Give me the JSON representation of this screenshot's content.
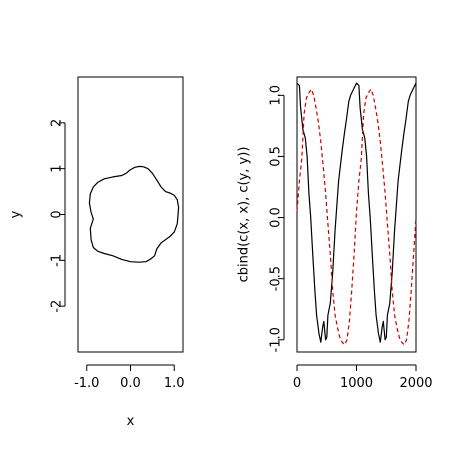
{
  "chart_data": [
    {
      "type": "line",
      "title": "",
      "xlabel": "x",
      "ylabel": "y",
      "xlim": [
        -1.2,
        1.2
      ],
      "ylim": [
        -3.0,
        3.0
      ],
      "x_ticks": [
        -1.0,
        0.0,
        1.0
      ],
      "x_tick_labels": [
        "-1.0",
        "0.0",
        "1.0"
      ],
      "y_ticks": [
        -2,
        -1,
        0,
        1,
        2
      ],
      "y_tick_labels": [
        "-2",
        "-1",
        "0",
        "1",
        "2"
      ],
      "grid": false,
      "series": [
        {
          "color": "#000000",
          "dash": "solid",
          "x": [
            1.1,
            1.07,
            1.0,
            0.9,
            0.8,
            0.7,
            0.6,
            0.5,
            0.4,
            0.3,
            0.2,
            0.1,
            0.0,
            -0.1,
            -0.2,
            -0.4,
            -0.6,
            -0.75,
            -0.85,
            -0.92,
            -0.94,
            -0.9,
            -0.85,
            -0.92,
            -0.9,
            -0.85,
            -0.75,
            -0.6,
            -0.4,
            -0.2,
            0.0,
            0.2,
            0.35,
            0.45,
            0.55,
            0.6,
            0.7,
            0.8,
            0.9,
            1.0,
            1.07,
            1.1
          ],
          "y": [
            0.15,
            0.32,
            0.42,
            0.47,
            0.5,
            0.6,
            0.75,
            0.9,
            1.0,
            1.04,
            1.05,
            1.03,
            0.98,
            0.9,
            0.85,
            0.82,
            0.78,
            0.7,
            0.6,
            0.45,
            0.25,
            0.05,
            -0.1,
            -0.3,
            -0.55,
            -0.72,
            -0.8,
            -0.85,
            -0.9,
            -0.98,
            -1.03,
            -1.04,
            -1.03,
            -0.98,
            -0.9,
            -0.75,
            -0.62,
            -0.55,
            -0.48,
            -0.38,
            -0.2,
            0.15
          ]
        }
      ]
    },
    {
      "type": "line",
      "title": "",
      "xlabel": "",
      "ylabel": "cbind(c(x, x), c(y, y))",
      "xlim": [
        0,
        2000
      ],
      "ylim": [
        -1.1,
        1.15
      ],
      "x_ticks": [
        0,
        1000,
        2000
      ],
      "x_tick_labels": [
        "0",
        "1000",
        "2000"
      ],
      "y_ticks": [
        -1.0,
        -0.5,
        0.0,
        0.5,
        1.0
      ],
      "y_tick_labels": [
        "-1.0",
        "-0.5",
        "0.0",
        "0.5",
        "1.0"
      ],
      "grid": false,
      "series": [
        {
          "color": "#000000",
          "dash": "solid",
          "x": [
            0,
            40,
            60,
            100,
            140,
            170,
            200,
            230,
            270,
            300,
            330,
            370,
            400,
            430,
            450,
            480,
            500,
            520,
            560,
            600,
            640,
            700,
            760,
            800,
            830,
            870,
            900,
            950,
            1000,
            1040,
            1060,
            1100,
            1140,
            1170,
            1200,
            1230,
            1270,
            1300,
            1330,
            1370,
            1400,
            1430,
            1450,
            1480,
            1500,
            1520,
            1560,
            1600,
            1640,
            1700,
            1760,
            1800,
            1830,
            1870,
            1900,
            1950,
            2000
          ],
          "y": [
            1.1,
            1.08,
            0.9,
            0.72,
            0.65,
            0.5,
            0.2,
            0.0,
            -0.35,
            -0.6,
            -0.8,
            -0.95,
            -1.02,
            -0.9,
            -0.85,
            -1.0,
            -0.98,
            -0.8,
            -0.7,
            -0.45,
            -0.1,
            0.3,
            0.55,
            0.7,
            0.8,
            0.95,
            1.0,
            1.05,
            1.1,
            1.08,
            0.9,
            0.72,
            0.65,
            0.5,
            0.2,
            0.0,
            -0.35,
            -0.6,
            -0.8,
            -0.95,
            -1.02,
            -0.9,
            -0.85,
            -1.0,
            -0.98,
            -0.8,
            -0.7,
            -0.45,
            -0.1,
            0.3,
            0.55,
            0.7,
            0.8,
            0.95,
            1.0,
            1.05,
            1.1
          ]
        },
        {
          "color": "#cc0000",
          "dash": "dashed",
          "x": [
            0,
            40,
            80,
            120,
            160,
            200,
            240,
            280,
            320,
            360,
            400,
            440,
            480,
            520,
            560,
            600,
            640,
            680,
            720,
            760,
            800,
            840,
            880,
            920,
            960,
            1000,
            1040,
            1080,
            1120,
            1160,
            1200,
            1240,
            1280,
            1320,
            1360,
            1400,
            1440,
            1480,
            1520,
            1560,
            1600,
            1640,
            1680,
            1720,
            1760,
            1800,
            1840,
            1880,
            1920,
            1960,
            2000
          ],
          "y": [
            0.05,
            0.3,
            0.48,
            0.85,
            0.98,
            1.02,
            1.05,
            1.0,
            0.9,
            0.78,
            0.62,
            0.42,
            0.2,
            -0.05,
            -0.3,
            -0.6,
            -0.8,
            -0.9,
            -0.98,
            -1.02,
            -1.04,
            -1.0,
            -0.85,
            -0.6,
            -0.3,
            0.05,
            0.3,
            0.48,
            0.85,
            0.98,
            1.02,
            1.05,
            1.0,
            0.9,
            0.78,
            0.62,
            0.42,
            0.2,
            -0.05,
            -0.3,
            -0.6,
            -0.8,
            -0.9,
            -0.98,
            -1.02,
            -1.04,
            -1.0,
            -0.85,
            -0.6,
            -0.3,
            0.0
          ]
        }
      ]
    }
  ]
}
